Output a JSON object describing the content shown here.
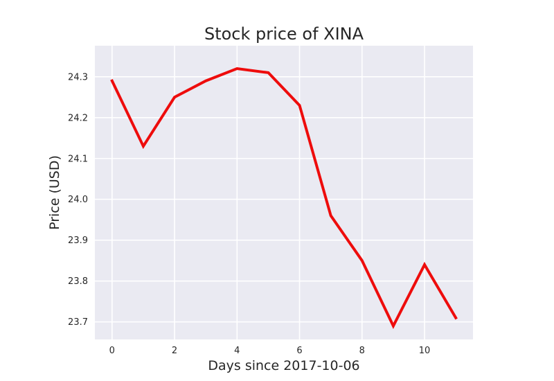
{
  "chart_data": {
    "type": "line",
    "title": "Stock price of XINA",
    "xlabel": "Days since 2017-10-06",
    "ylabel": "Price (USD)",
    "x": [
      0,
      1,
      2,
      3,
      4,
      5,
      6,
      7,
      8,
      9,
      10,
      11
    ],
    "series": [
      {
        "values": [
          24.29,
          24.13,
          24.25,
          24.29,
          24.32,
          24.31,
          24.23,
          23.96,
          23.85,
          23.69,
          23.84,
          23.71
        ]
      }
    ],
    "xlim": [
      -0.55,
      11.55
    ],
    "ylim": [
      23.657,
      24.376
    ],
    "xticks": [
      "0",
      "2",
      "4",
      "6",
      "8",
      "10"
    ],
    "yticks": [
      "23.7",
      "23.8",
      "23.9",
      "24.0",
      "24.1",
      "24.2",
      "24.3"
    ],
    "grid": true,
    "line_color": "#ee0c0c",
    "background_color": "#eaeaf2",
    "grid_color": "#ffffff"
  }
}
